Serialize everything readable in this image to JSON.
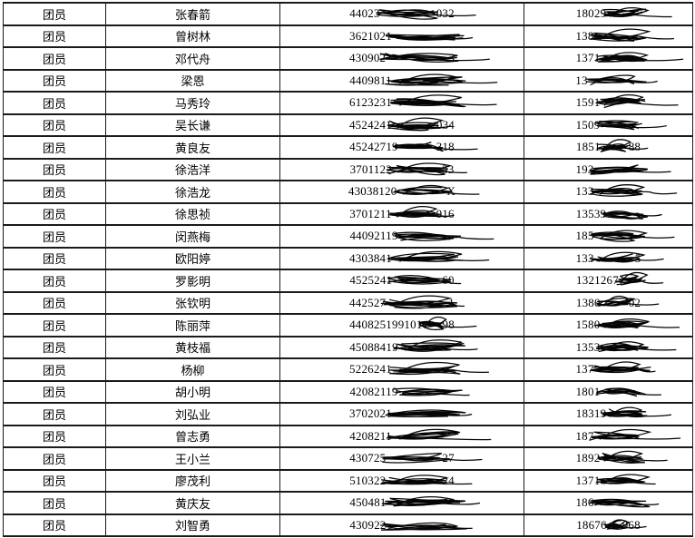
{
  "colors": {
    "background": "#ffffff",
    "border": "#1a1a1a",
    "text": "#000000",
    "ink": "#050505"
  },
  "table": {
    "rows": [
      {
        "role": "团员",
        "name": "张春箭",
        "id": {
          "prefix": "44023",
          "suffix": "032"
        },
        "phone": {
          "prefix": "18029",
          "suffix": ""
        }
      },
      {
        "role": "团员",
        "name": "曾树林",
        "id": {
          "prefix": "3621021",
          "suffix": ""
        },
        "phone": {
          "prefix": "138",
          "suffix": ""
        }
      },
      {
        "role": "团员",
        "name": "邓代舟",
        "id": {
          "prefix": "430902",
          "suffix": "3"
        },
        "phone": {
          "prefix": "1371",
          "suffix": ""
        }
      },
      {
        "role": "团员",
        "name": "梁恩",
        "id": {
          "prefix": "4409811",
          "suffix": ""
        },
        "phone": {
          "prefix": "13",
          "suffix": ""
        }
      },
      {
        "role": "团员",
        "name": "马秀玲",
        "id": {
          "prefix": "6123231",
          "suffix": ""
        },
        "phone": {
          "prefix": "1591",
          "suffix": ""
        }
      },
      {
        "role": "团员",
        "name": "吴长谦",
        "id": {
          "prefix": "4524241",
          "suffix": "034"
        },
        "phone": {
          "prefix": "1509",
          "suffix": ""
        }
      },
      {
        "role": "团员",
        "name": "黄良友",
        "id": {
          "prefix": "45242719",
          "suffix": "318"
        },
        "phone": {
          "prefix": "1851",
          "suffix": "88"
        }
      },
      {
        "role": "团员",
        "name": "徐浩洋",
        "id": {
          "prefix": "3701122",
          "suffix": "33"
        },
        "phone": {
          "prefix": "193",
          "suffix": ""
        }
      },
      {
        "role": "团员",
        "name": "徐浩龙",
        "id": {
          "prefix": "43038120",
          "suffix": "X"
        },
        "phone": {
          "prefix": "133",
          "suffix": ""
        }
      },
      {
        "role": "团员",
        "name": "徐思祯",
        "id": {
          "prefix": "3701211",
          "suffix": "016"
        },
        "phone": {
          "prefix": "13539",
          "suffix": ""
        }
      },
      {
        "role": "团员",
        "name": "闵燕梅",
        "id": {
          "prefix": "44092119",
          "suffix": ""
        },
        "phone": {
          "prefix": "185",
          "suffix": ""
        }
      },
      {
        "role": "团员",
        "name": "欧阳婷",
        "id": {
          "prefix": "4303841",
          "suffix": ""
        },
        "phone": {
          "prefix": "133",
          "suffix": "5"
        }
      },
      {
        "role": "团员",
        "name": "罗影明",
        "id": {
          "prefix": "4525241",
          "suffix": "60"
        },
        "phone": {
          "prefix": "1321267",
          "suffix": ""
        }
      },
      {
        "role": "团员",
        "name": "张钦明",
        "id": {
          "prefix": "442527",
          "suffix": "1"
        },
        "phone": {
          "prefix": "1380",
          "suffix": "02"
        }
      },
      {
        "role": "团员",
        "name": "陈丽萍",
        "id": {
          "prefix": "440825199101",
          "suffix": "98"
        },
        "phone": {
          "prefix": "1580",
          "suffix": ""
        }
      },
      {
        "role": "团员",
        "name": "黄枝福",
        "id": {
          "prefix": "45088419",
          "suffix": ""
        },
        "phone": {
          "prefix": "1353",
          "suffix": ""
        }
      },
      {
        "role": "团员",
        "name": "杨柳",
        "id": {
          "prefix": "5226241",
          "suffix": ""
        },
        "phone": {
          "prefix": "137",
          "suffix": ""
        }
      },
      {
        "role": "团员",
        "name": "胡小明",
        "id": {
          "prefix": "42082119",
          "suffix": ""
        },
        "phone": {
          "prefix": "1801",
          "suffix": ""
        }
      },
      {
        "role": "团员",
        "name": "刘弘业",
        "id": {
          "prefix": "3702021",
          "suffix": ""
        },
        "phone": {
          "prefix": "18319",
          "suffix": ""
        }
      },
      {
        "role": "团员",
        "name": "曾志勇",
        "id": {
          "prefix": "4208211",
          "suffix": ""
        },
        "phone": {
          "prefix": "187",
          "suffix": ""
        }
      },
      {
        "role": "团员",
        "name": "王小兰",
        "id": {
          "prefix": "430725",
          "suffix": "27"
        },
        "phone": {
          "prefix": "1892",
          "suffix": ""
        }
      },
      {
        "role": "团员",
        "name": "廖茂利",
        "id": {
          "prefix": "510322",
          "suffix": "24"
        },
        "phone": {
          "prefix": "1371",
          "suffix": ""
        }
      },
      {
        "role": "团员",
        "name": "黄庆友",
        "id": {
          "prefix": "450481",
          "suffix": ""
        },
        "phone": {
          "prefix": "186",
          "suffix": ""
        }
      },
      {
        "role": "团员",
        "name": "刘智勇",
        "id": {
          "prefix": "430922",
          "suffix": ""
        },
        "phone": {
          "prefix": "18676",
          "suffix": "968"
        }
      }
    ]
  }
}
